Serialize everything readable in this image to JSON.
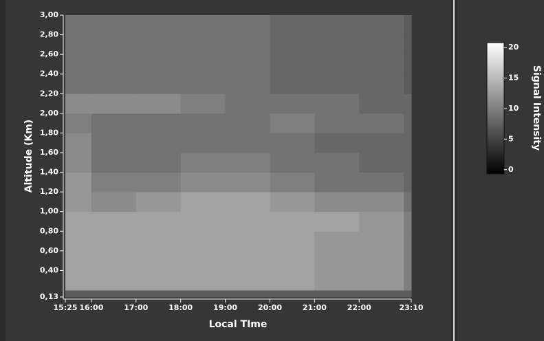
{
  "chart_data": {
    "type": "heatmap",
    "x_label": "Local TIme",
    "y_label": "Altitude  (Km)",
    "colorbar_label": "Signal Intensity",
    "xlim": [
      15.4167,
      23.1667
    ],
    "xticks": [
      {
        "value": 15.4167,
        "label": "15:25"
      },
      {
        "value": 16,
        "label": "16:00"
      },
      {
        "value": 17,
        "label": "17:00"
      },
      {
        "value": 18,
        "label": "18:00"
      },
      {
        "value": 19,
        "label": "19:00"
      },
      {
        "value": 20,
        "label": "20:00"
      },
      {
        "value": 21,
        "label": "21:00"
      },
      {
        "value": 22,
        "label": "22:00"
      },
      {
        "value": 23.1667,
        "label": "23:10"
      }
    ],
    "ylim": [
      0.13,
      3
    ],
    "yticks": [
      {
        "value": 0.13,
        "label": "0,13"
      },
      {
        "value": 0.4,
        "label": "0,40"
      },
      {
        "value": 0.6,
        "label": "0,60"
      },
      {
        "value": 0.8,
        "label": "0,80"
      },
      {
        "value": 1,
        "label": "1,00"
      },
      {
        "value": 1.2,
        "label": "1,20"
      },
      {
        "value": 1.4,
        "label": "1,40"
      },
      {
        "value": 1.6,
        "label": "1,60"
      },
      {
        "value": 1.8,
        "label": "1,80"
      },
      {
        "value": 2,
        "label": "2,00"
      },
      {
        "value": 2.2,
        "label": "2,20"
      },
      {
        "value": 2.4,
        "label": "2,40"
      },
      {
        "value": 2.6,
        "label": "2,60"
      },
      {
        "value": 2.8,
        "label": "2,80"
      },
      {
        "value": 3,
        "label": "3,00"
      }
    ],
    "x_bins": [
      15.4167,
      16,
      17,
      18,
      19,
      20,
      21,
      22,
      23,
      23.1667
    ],
    "y_bins": [
      0.13,
      0.2,
      0.4,
      0.6,
      0.8,
      1,
      1.2,
      1.4,
      1.6,
      1.8,
      2,
      2.2,
      2.4,
      2.6,
      2.8,
      3
    ],
    "z": [
      [
        7,
        7,
        7,
        7,
        7,
        7,
        7,
        7,
        7
      ],
      [
        13,
        13,
        13,
        13,
        13,
        13,
        12,
        12,
        10
      ],
      [
        13,
        13,
        13,
        13,
        13,
        13,
        12,
        12,
        10
      ],
      [
        13,
        13,
        13,
        13,
        13,
        13,
        12,
        12,
        10
      ],
      [
        13,
        13,
        13,
        13,
        13,
        13,
        13,
        12,
        10
      ],
      [
        12,
        11,
        12,
        13,
        13,
        12,
        11,
        11,
        9
      ],
      [
        12,
        10,
        10,
        11,
        11,
        10,
        9,
        9,
        8
      ],
      [
        11,
        9,
        9,
        10,
        10,
        9,
        9,
        8,
        8
      ],
      [
        11,
        9,
        9,
        9,
        9,
        9,
        8,
        8,
        8
      ],
      [
        10,
        9,
        9,
        9,
        9,
        10,
        9,
        9,
        8
      ],
      [
        11,
        11,
        11,
        10,
        9,
        9,
        9,
        8,
        8
      ],
      [
        9,
        9,
        9,
        9,
        9,
        8,
        8,
        8,
        7
      ],
      [
        9,
        9,
        9,
        9,
        9,
        8,
        8,
        8,
        7
      ],
      [
        9,
        9,
        9,
        9,
        9,
        8,
        8,
        8,
        7
      ],
      [
        9,
        9,
        9,
        9,
        9,
        8,
        8,
        8,
        7
      ]
    ],
    "clim": [
      -0.7,
      20.8
    ],
    "colorbar_ticks": [
      0,
      5,
      10,
      15,
      20
    ],
    "colormap": [
      "#000000",
      "#ffffff"
    ]
  }
}
